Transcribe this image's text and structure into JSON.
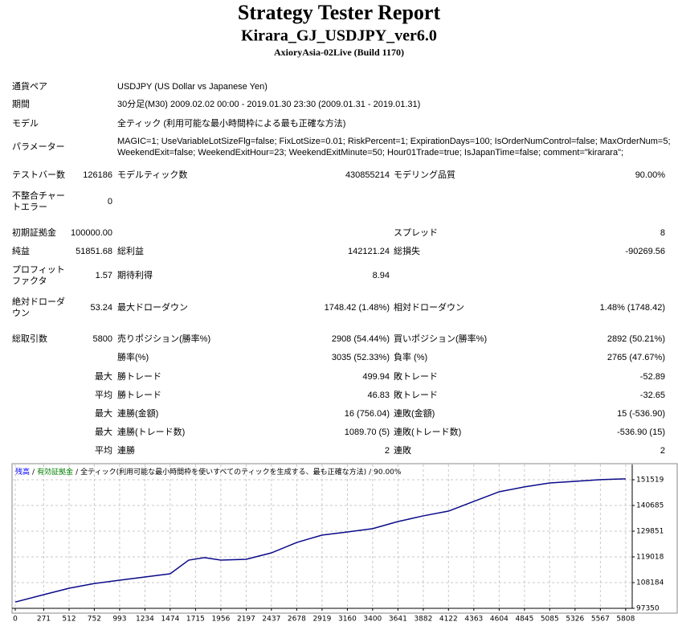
{
  "header": {
    "title": "Strategy Tester Report",
    "subtitle": "Kirara_GJ_USDJPY_ver6.0",
    "build": "AxioryAsia-02Live (Build 1170)"
  },
  "table": {
    "rows": [
      [
        "通貨ペア",
        "USDJPY (US Dollar vs Japanese Yen)"
      ],
      [
        "期間",
        "30分足(M30) 2009.02.02 00:00 - 2019.01.30 23:30 (2009.01.31 - 2019.01.31)"
      ],
      [
        "モデル",
        "全ティック (利用可能な最小時間枠による最も正確な方法)"
      ],
      [
        "パラメーター",
        "MAGIC=1; UseVariableLotSizeFlg=false; FixLotSize=0.01; RiskPercent=1; ExpirationDays=100; IsOrderNumControl=false; MaxOrderNum=5;",
        "WeekendExit=false; WeekendExitHour=23; WeekendExitMinute=50; Hour01Trade=true; IsJapanTime=false; comment=\"kirarara\";"
      ],
      [
        "テストバー数",
        "126186",
        "モデルティック数",
        "430855214",
        "モデリング品質",
        "90.00%"
      ],
      [
        "不整合チャートエラー",
        "0"
      ],
      [
        "初期証拠金",
        "100000.00",
        "スプレッド",
        "8"
      ],
      [
        "純益",
        "51851.68",
        "総利益",
        "142121.24",
        "総損失",
        "-90269.56"
      ],
      [
        "プロフィットファクタ",
        "1.57",
        "期待利得",
        "8.94"
      ],
      [
        "絶対ドローダウン",
        "53.24",
        "最大ドローダウン",
        "1748.42 (1.48%)",
        "相対ドローダウン",
        "1.48% (1748.42)"
      ],
      [
        "総取引数",
        "5800",
        "売りポジション(勝率%)",
        "2908 (54.44%)",
        "買いポジション(勝率%)",
        "2892 (50.21%)"
      ],
      [
        "勝率(%)",
        "3035 (52.33%)",
        "負率 (%)",
        "2765 (47.67%)"
      ],
      [
        "最大",
        "勝トレード",
        "499.94",
        "敗トレード",
        "-52.89"
      ],
      [
        "平均",
        "勝トレード",
        "46.83",
        "敗トレード",
        "-32.65"
      ],
      [
        "最大",
        "連勝(金額)",
        "16 (756.04)",
        "連敗(金額)",
        "15 (-536.90)"
      ],
      [
        "最大",
        "連勝(トレード数)",
        "1089.70 (5)",
        "連敗(トレード数)",
        "-536.90 (15)"
      ],
      [
        "平均",
        "連勝",
        "2",
        "連敗",
        "2"
      ]
    ]
  },
  "chart": {
    "type": "line",
    "color": "#0a0a8a",
    "legend": [
      {
        "text": "残高",
        "color": "#0000ff"
      },
      {
        "text": "有効証拠金",
        "color": "#008000"
      },
      {
        "text": "全ティック(利用可能な最小時間枠を使いすべてのティックを生成する、最も正確な方法)",
        "color": "#000000"
      },
      {
        "text": "90.00%",
        "color": "#000000"
      }
    ],
    "legend_separator": "/",
    "x": [
      0,
      271,
      512,
      752,
      993,
      1234,
      1474,
      1650,
      1800,
      1956,
      2197,
      2437,
      2678,
      2919,
      3160,
      3400,
      3641,
      3882,
      4122,
      4363,
      4604,
      4845,
      5085,
      5326,
      5567,
      5808
    ],
    "values": [
      100000,
      103100,
      105800,
      107800,
      109200,
      110550,
      111900,
      117650,
      118700,
      117650,
      118000,
      120700,
      125100,
      128200,
      129500,
      130900,
      133900,
      136300,
      138300,
      142400,
      146450,
      148500,
      150150,
      150850,
      151550,
      151900
    ],
    "xlim": [
      0,
      5870
    ],
    "ylim": [
      97350,
      157950
    ],
    "xticks": [
      0,
      271,
      512,
      752,
      993,
      1234,
      1474,
      1715,
      1956,
      2197,
      2437,
      2678,
      2919,
      3160,
      3400,
      3641,
      3882,
      4122,
      4363,
      4604,
      4845,
      5085,
      5326,
      5567,
      5808
    ],
    "yticks": [
      97350,
      108184,
      119018,
      129851,
      140685,
      151519
    ],
    "grid": true
  }
}
